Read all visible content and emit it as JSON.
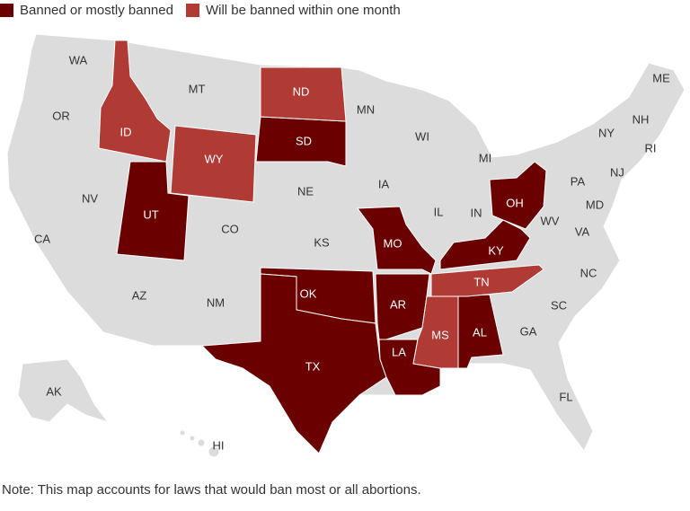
{
  "legend": [
    {
      "label": "Banned or mostly banned",
      "color": "#6b0000"
    },
    {
      "label": "Will be banned within one month",
      "color": "#b03a34"
    }
  ],
  "colors": {
    "banned": "#6b0000",
    "soon": "#b03a34",
    "other": "#dcdcdc"
  },
  "states": {
    "banned": [
      "SD",
      "UT",
      "MO",
      "KY",
      "OH",
      "OK",
      "TX",
      "AR",
      "LA",
      "AL"
    ],
    "soon": [
      "ID",
      "WY",
      "ND",
      "TN",
      "MS"
    ],
    "other": [
      "WA",
      "MT",
      "OR",
      "NV",
      "CA",
      "AZ",
      "NM",
      "CO",
      "NE",
      "KS",
      "MN",
      "WI",
      "IA",
      "IL",
      "IN",
      "MI",
      "WV",
      "VA",
      "PA",
      "NY",
      "NJ",
      "MD",
      "NH",
      "RI",
      "ME",
      "NC",
      "SC",
      "GA",
      "FL",
      "AK",
      "HI"
    ]
  },
  "note": "Note: This map accounts for laws that would ban most or all abortions."
}
